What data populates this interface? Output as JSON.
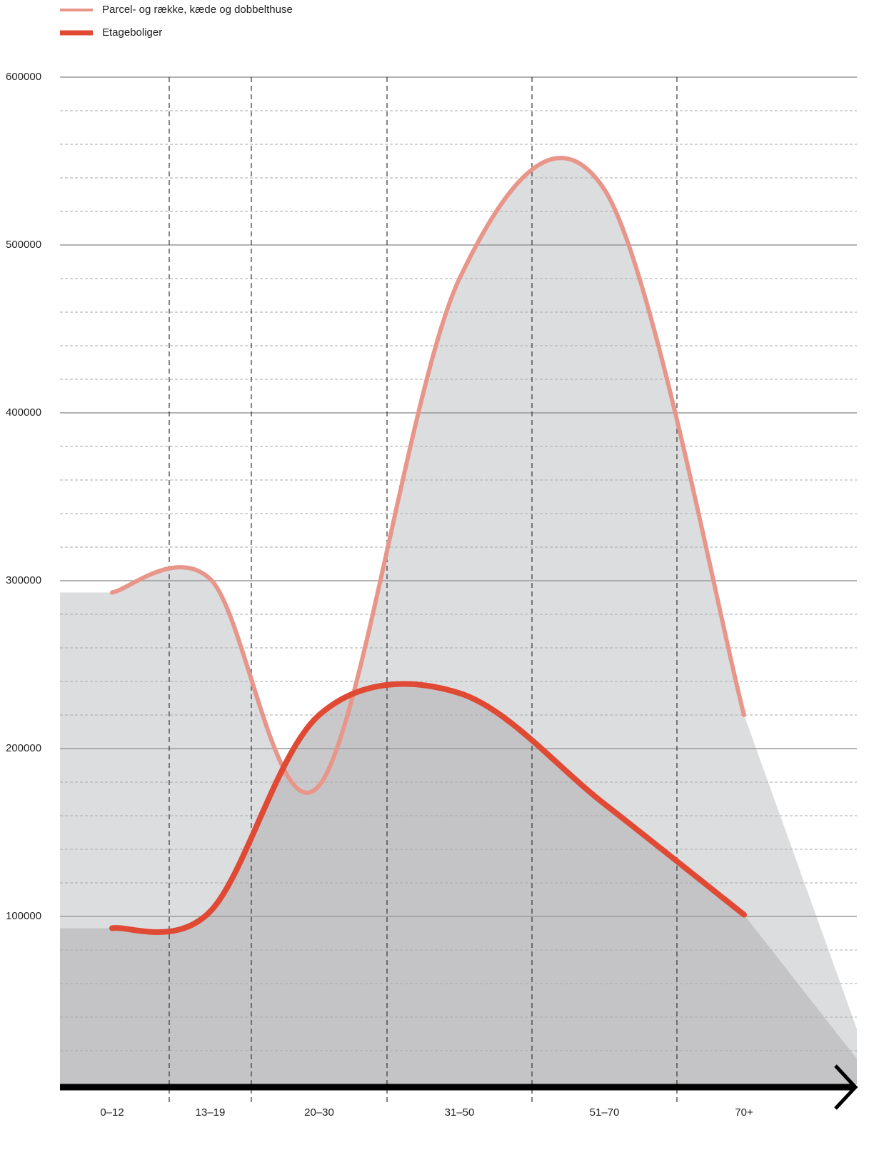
{
  "chart_data": {
    "type": "line",
    "categories": [
      "0–12",
      "13–19",
      "20–30",
      "31–50",
      "51–70",
      "70+"
    ],
    "series": [
      {
        "name": "Parcel- og række, kæde og dobbelthuse",
        "color": "#e8958a",
        "fill": "#dcdddf",
        "values": [
          293000,
          301000,
          178000,
          480000,
          533000,
          220000
        ]
      },
      {
        "name": "Etageboliger",
        "color": "#e04a35",
        "fill": "#c0c0c2",
        "values": [
          93000,
          103000,
          220000,
          233000,
          167000,
          101000
        ]
      }
    ],
    "ylim": [
      0,
      600000
    ],
    "yticks": [
      100000,
      200000,
      300000,
      400000,
      500000,
      600000
    ],
    "grid": true
  }
}
